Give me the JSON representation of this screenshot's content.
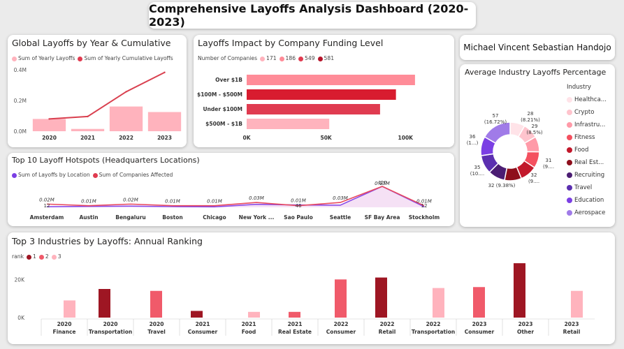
{
  "dashboard_title": "Comprehensive Layoffs Analysis Dashboard (2020-2023)",
  "author": "Michael Vincent Sebastian Handojo",
  "colors": {
    "pink": "#ffb3bd",
    "red": "#e03b50",
    "crimson": "#d81c2f",
    "dark": "#9e1623",
    "purple": "#7b3fe4",
    "lavender": "#e8c9f0"
  },
  "chart_data": [
    {
      "id": "yearly",
      "type": "bar",
      "title": "Global Layoffs by Year & Cumulative",
      "legend": [
        "Sum of Yearly Layoffs",
        "Sum of Yearly Cumulative Layoffs"
      ],
      "categories": [
        "2020",
        "2021",
        "2022",
        "2023"
      ],
      "series": [
        {
          "name": "Sum of Yearly Layoffs",
          "values": [
            80000,
            15000,
            161000,
            125000
          ]
        },
        {
          "name": "Sum of Yearly Cumulative Layoffs",
          "values": [
            80000,
            96000,
            257000,
            383000
          ]
        }
      ],
      "yticks": [
        "0.0M",
        "0.2M",
        "0.4M"
      ],
      "ylim": [
        0,
        400000
      ]
    },
    {
      "id": "funding",
      "type": "bar",
      "title": "Layoffs Impact by Company Funding Level",
      "legend_title": "Number of Companies",
      "legend": [
        "171",
        "186",
        "549",
        "581"
      ],
      "categories": [
        "Over $1B",
        "$100M - $500M",
        "Under $100M",
        "$500M - $1B"
      ],
      "values": [
        106000,
        94000,
        84000,
        52000
      ],
      "xticks": [
        "0K",
        "50K",
        "100K"
      ],
      "xlim": [
        0,
        110000
      ]
    },
    {
      "id": "industry_pct",
      "type": "pie",
      "title": "Average Industry Layoffs Percentage",
      "legend_title": "Industry",
      "labels": [
        "Healthca...",
        "Crypto",
        "Infrastru...",
        "Fitness",
        "Food",
        "Real Est...",
        "Recruiting",
        "Travel",
        "Education",
        "Aerospace"
      ],
      "values": [
        28,
        29,
        29,
        31,
        32,
        32,
        32,
        35,
        36,
        57
      ],
      "data_labels": [
        [
          "28",
          "(8.21%)"
        ],
        [
          "29",
          "(8.5%)"
        ],
        [
          "31",
          "(9...."
        ],
        [
          "32",
          "(9...."
        ],
        [
          "32 (9.38%)"
        ],
        [
          "35",
          "(10...."
        ],
        [
          "36",
          "(1...)"
        ],
        [
          "57",
          "(16.72%)"
        ]
      ]
    },
    {
      "id": "hotspots",
      "type": "line",
      "title": "Top 10 Layoff Hotspots (Headquarters Locations)",
      "legend": [
        "Sum of Layoffs by Location",
        "Sum of Companies Affected"
      ],
      "categories": [
        "Amsterdam",
        "Austin",
        "Bengaluru",
        "Boston",
        "Chicago",
        "New York ...",
        "Sao Paulo",
        "Seattle",
        "SF Bay Area",
        "Stockholm"
      ],
      "series": [
        {
          "name": "Sum of Layoffs by Location",
          "values": [
            20000,
            10000,
            20000,
            10000,
            10000,
            30000,
            10000,
            30000,
            130000,
            10000
          ]
        },
        {
          "name": "Sum of Companies Affected",
          "values": [
            12,
            18,
            24,
            14,
            9,
            60,
            46,
            43,
            420,
            12
          ]
        }
      ],
      "labels": [
        "0.02M",
        "0.01M",
        "0.02M",
        "0.01M",
        "0.01M",
        "0.03M",
        "0.01M",
        "0.03M",
        "0.13M",
        "0.01M"
      ],
      "count_labels": [
        "12",
        "46",
        "420",
        "12"
      ]
    },
    {
      "id": "top3",
      "type": "bar",
      "title": "Top 3 Industries by Layoffs: Annual Ranking",
      "legend_title": "rank",
      "legend": [
        "1",
        "2",
        "3"
      ],
      "categories": [
        [
          "2020",
          "Finance"
        ],
        [
          "2020",
          "Transportation"
        ],
        [
          "2020",
          "Travel"
        ],
        [
          "2021",
          "Consumer"
        ],
        [
          "2021",
          "Food"
        ],
        [
          "2021",
          "Real Estate"
        ],
        [
          "2022",
          "Consumer"
        ],
        [
          "2022",
          "Retail"
        ],
        [
          "2022",
          "Transportation"
        ],
        [
          "2023",
          "Consumer"
        ],
        [
          "2023",
          "Other"
        ],
        [
          "2023",
          "Retail"
        ]
      ],
      "values": [
        9000,
        15000,
        14000,
        3500,
        3000,
        3000,
        20000,
        21000,
        15500,
        16000,
        28500,
        14000
      ],
      "ranks": [
        3,
        1,
        2,
        1,
        3,
        2,
        2,
        1,
        3,
        2,
        1,
        3
      ],
      "yticks": [
        "0K",
        "20K"
      ],
      "ylim": [
        0,
        30000
      ]
    }
  ]
}
